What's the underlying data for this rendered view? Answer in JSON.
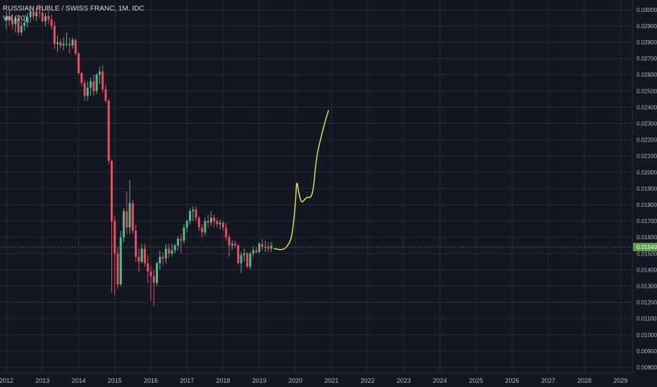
{
  "legend": {
    "title": "RUSSIAN RUBLE / SWISS FRANC, 1M, IDC",
    "indicator": "Vol (20)"
  },
  "current_price_label": "0.01540",
  "colors": {
    "background": "#131722",
    "grid": "#262b3a",
    "up": "#53b987",
    "down": "#eb4d5c",
    "drawing": "#e6f04a",
    "price_line": "#5b9c45",
    "axis_text": "#b2b5be"
  },
  "chart_data": {
    "type": "candlestick",
    "title": "RUSSIAN RUBLE / SWISS FRANC, 1M, IDC",
    "ylim": [
      0.0077,
      0.0303
    ],
    "y_ticks": [
      "0.03000",
      "0.02900",
      "0.02800",
      "0.02700",
      "0.02600",
      "0.02500",
      "0.02400",
      "0.02300",
      "0.02200",
      "0.02100",
      "0.02000",
      "0.01900",
      "0.01800",
      "0.01700",
      "0.01600",
      "0.01500",
      "0.01400",
      "0.01300",
      "0.01200",
      "0.01100",
      "0.01000",
      "0.00900",
      "0.00800"
    ],
    "x_ticks": [
      "2012",
      "2013",
      "2014",
      "2015",
      "2016",
      "2017",
      "2018",
      "2019",
      "2020",
      "2021",
      "2022",
      "2023",
      "2024",
      "2025",
      "2026",
      "2027",
      "2028",
      "2029"
    ],
    "grid": true,
    "current_price": 0.0154,
    "candles": [
      {
        "t": "2012-01",
        "o": 0.02935,
        "h": 0.0299,
        "l": 0.0288,
        "c": 0.0296
      },
      {
        "t": "2012-02",
        "o": 0.0296,
        "h": 0.03,
        "l": 0.029,
        "c": 0.0294
      },
      {
        "t": "2012-03",
        "o": 0.0294,
        "h": 0.02975,
        "l": 0.0288,
        "c": 0.0291
      },
      {
        "t": "2012-04",
        "o": 0.0291,
        "h": 0.0296,
        "l": 0.0286,
        "c": 0.0295
      },
      {
        "t": "2012-05",
        "o": 0.0295,
        "h": 0.0297,
        "l": 0.0284,
        "c": 0.0286
      },
      {
        "t": "2012-06",
        "o": 0.0286,
        "h": 0.0293,
        "l": 0.0284,
        "c": 0.029
      },
      {
        "t": "2012-07",
        "o": 0.029,
        "h": 0.0294,
        "l": 0.0287,
        "c": 0.0292
      },
      {
        "t": "2012-08",
        "o": 0.0292,
        "h": 0.0298,
        "l": 0.0289,
        "c": 0.02955
      },
      {
        "t": "2012-09",
        "o": 0.02955,
        "h": 0.0301,
        "l": 0.0292,
        "c": 0.0299
      },
      {
        "t": "2012-10",
        "o": 0.0299,
        "h": 0.0302,
        "l": 0.0294,
        "c": 0.0296
      },
      {
        "t": "2012-11",
        "o": 0.0296,
        "h": 0.0301,
        "l": 0.0293,
        "c": 0.02985
      },
      {
        "t": "2012-12",
        "o": 0.02985,
        "h": 0.0303,
        "l": 0.0295,
        "c": 0.0298
      },
      {
        "t": "2013-01",
        "o": 0.0298,
        "h": 0.0302,
        "l": 0.0292,
        "c": 0.0293
      },
      {
        "t": "2013-02",
        "o": 0.0293,
        "h": 0.0298,
        "l": 0.029,
        "c": 0.0296
      },
      {
        "t": "2013-03",
        "o": 0.0296,
        "h": 0.0299,
        "l": 0.0291,
        "c": 0.0294
      },
      {
        "t": "2013-04",
        "o": 0.0294,
        "h": 0.0297,
        "l": 0.0288,
        "c": 0.029
      },
      {
        "t": "2013-05",
        "o": 0.029,
        "h": 0.0293,
        "l": 0.0276,
        "c": 0.0279
      },
      {
        "t": "2013-06",
        "o": 0.0279,
        "h": 0.0284,
        "l": 0.0274,
        "c": 0.028
      },
      {
        "t": "2013-07",
        "o": 0.028,
        "h": 0.0282,
        "l": 0.0276,
        "c": 0.0278
      },
      {
        "t": "2013-08",
        "o": 0.0278,
        "h": 0.0283,
        "l": 0.0275,
        "c": 0.0279
      },
      {
        "t": "2013-09",
        "o": 0.0279,
        "h": 0.0286,
        "l": 0.0277,
        "c": 0.0279
      },
      {
        "t": "2013-10",
        "o": 0.0279,
        "h": 0.0283,
        "l": 0.0273,
        "c": 0.0278
      },
      {
        "t": "2013-11",
        "o": 0.0278,
        "h": 0.0283,
        "l": 0.0276,
        "c": 0.02815
      },
      {
        "t": "2013-12",
        "o": 0.02815,
        "h": 0.0282,
        "l": 0.0272,
        "c": 0.0273
      },
      {
        "t": "2014-01",
        "o": 0.0273,
        "h": 0.0274,
        "l": 0.026,
        "c": 0.0261
      },
      {
        "t": "2014-02",
        "o": 0.0261,
        "h": 0.0262,
        "l": 0.0253,
        "c": 0.0255
      },
      {
        "t": "2014-03",
        "o": 0.0255,
        "h": 0.0257,
        "l": 0.0244,
        "c": 0.0247
      },
      {
        "t": "2014-04",
        "o": 0.0247,
        "h": 0.0256,
        "l": 0.0244,
        "c": 0.0252
      },
      {
        "t": "2014-05",
        "o": 0.0252,
        "h": 0.0258,
        "l": 0.0247,
        "c": 0.0256
      },
      {
        "t": "2014-06",
        "o": 0.0256,
        "h": 0.026,
        "l": 0.0247,
        "c": 0.025
      },
      {
        "t": "2014-07",
        "o": 0.025,
        "h": 0.0261,
        "l": 0.0248,
        "c": 0.026
      },
      {
        "t": "2014-08",
        "o": 0.026,
        "h": 0.0265,
        "l": 0.0254,
        "c": 0.0262
      },
      {
        "t": "2014-09",
        "o": 0.0262,
        "h": 0.0266,
        "l": 0.0249,
        "c": 0.0251
      },
      {
        "t": "2014-10",
        "o": 0.0251,
        "h": 0.0254,
        "l": 0.0243,
        "c": 0.0244
      },
      {
        "t": "2014-11",
        "o": 0.0244,
        "h": 0.0245,
        "l": 0.0205,
        "c": 0.0207
      },
      {
        "t": "2014-12",
        "o": 0.0207,
        "h": 0.0208,
        "l": 0.0126,
        "c": 0.017
      },
      {
        "t": "2015-01",
        "o": 0.017,
        "h": 0.0173,
        "l": 0.0124,
        "c": 0.015
      },
      {
        "t": "2015-02",
        "o": 0.015,
        "h": 0.0154,
        "l": 0.0128,
        "c": 0.0131
      },
      {
        "t": "2015-03",
        "o": 0.0131,
        "h": 0.0164,
        "l": 0.013,
        "c": 0.016
      },
      {
        "t": "2015-04",
        "o": 0.016,
        "h": 0.0178,
        "l": 0.0157,
        "c": 0.0176
      },
      {
        "t": "2015-05",
        "o": 0.0176,
        "h": 0.0188,
        "l": 0.0162,
        "c": 0.0166
      },
      {
        "t": "2015-06",
        "o": 0.0166,
        "h": 0.0195,
        "l": 0.0162,
        "c": 0.0181
      },
      {
        "t": "2015-07",
        "o": 0.0181,
        "h": 0.0183,
        "l": 0.0162,
        "c": 0.0164
      },
      {
        "t": "2015-08",
        "o": 0.0164,
        "h": 0.0168,
        "l": 0.0145,
        "c": 0.0148
      },
      {
        "t": "2015-09",
        "o": 0.0148,
        "h": 0.0153,
        "l": 0.0139,
        "c": 0.0145
      },
      {
        "t": "2015-10",
        "o": 0.0145,
        "h": 0.0156,
        "l": 0.0144,
        "c": 0.0153
      },
      {
        "t": "2015-11",
        "o": 0.0153,
        "h": 0.0156,
        "l": 0.0142,
        "c": 0.0144
      },
      {
        "t": "2015-12",
        "o": 0.0144,
        "h": 0.0149,
        "l": 0.0132,
        "c": 0.0139
      },
      {
        "t": "2016-01",
        "o": 0.0139,
        "h": 0.0143,
        "l": 0.0121,
        "c": 0.0136
      },
      {
        "t": "2016-02",
        "o": 0.0136,
        "h": 0.014,
        "l": 0.0118,
        "c": 0.0132
      },
      {
        "t": "2016-03",
        "o": 0.0132,
        "h": 0.0145,
        "l": 0.013,
        "c": 0.0144
      },
      {
        "t": "2016-04",
        "o": 0.0144,
        "h": 0.0152,
        "l": 0.014,
        "c": 0.0148
      },
      {
        "t": "2016-05",
        "o": 0.0148,
        "h": 0.0151,
        "l": 0.0143,
        "c": 0.0147
      },
      {
        "t": "2016-06",
        "o": 0.0147,
        "h": 0.0156,
        "l": 0.0144,
        "c": 0.0153
      },
      {
        "t": "2016-07",
        "o": 0.0153,
        "h": 0.0156,
        "l": 0.0147,
        "c": 0.015
      },
      {
        "t": "2016-08",
        "o": 0.015,
        "h": 0.0156,
        "l": 0.0148,
        "c": 0.0152
      },
      {
        "t": "2016-09",
        "o": 0.0152,
        "h": 0.0156,
        "l": 0.015,
        "c": 0.0155
      },
      {
        "t": "2016-10",
        "o": 0.0155,
        "h": 0.0161,
        "l": 0.0152,
        "c": 0.0159
      },
      {
        "t": "2016-11",
        "o": 0.0159,
        "h": 0.0162,
        "l": 0.015,
        "c": 0.0158
      },
      {
        "t": "2016-12",
        "o": 0.0158,
        "h": 0.0168,
        "l": 0.0156,
        "c": 0.0166
      },
      {
        "t": "2017-01",
        "o": 0.0166,
        "h": 0.0171,
        "l": 0.0163,
        "c": 0.017
      },
      {
        "t": "2017-02",
        "o": 0.017,
        "h": 0.0178,
        "l": 0.0168,
        "c": 0.0176
      },
      {
        "t": "2017-03",
        "o": 0.0176,
        "h": 0.0179,
        "l": 0.017,
        "c": 0.0177
      },
      {
        "t": "2017-04",
        "o": 0.0177,
        "h": 0.0179,
        "l": 0.017,
        "c": 0.0172
      },
      {
        "t": "2017-05",
        "o": 0.0172,
        "h": 0.0173,
        "l": 0.0164,
        "c": 0.0166
      },
      {
        "t": "2017-06",
        "o": 0.0166,
        "h": 0.0168,
        "l": 0.016,
        "c": 0.0163
      },
      {
        "t": "2017-07",
        "o": 0.0163,
        "h": 0.0172,
        "l": 0.0161,
        "c": 0.017
      },
      {
        "t": "2017-08",
        "o": 0.017,
        "h": 0.0174,
        "l": 0.0166,
        "c": 0.0169
      },
      {
        "t": "2017-09",
        "o": 0.0169,
        "h": 0.0176,
        "l": 0.0167,
        "c": 0.0172
      },
      {
        "t": "2017-10",
        "o": 0.0172,
        "h": 0.0174,
        "l": 0.0166,
        "c": 0.017
      },
      {
        "t": "2017-11",
        "o": 0.017,
        "h": 0.0172,
        "l": 0.0166,
        "c": 0.0168
      },
      {
        "t": "2017-12",
        "o": 0.0168,
        "h": 0.0171,
        "l": 0.0165,
        "c": 0.0169
      },
      {
        "t": "2018-01",
        "o": 0.0169,
        "h": 0.017,
        "l": 0.0164,
        "c": 0.0166
      },
      {
        "t": "2018-02",
        "o": 0.0166,
        "h": 0.0169,
        "l": 0.0158,
        "c": 0.016
      },
      {
        "t": "2018-03",
        "o": 0.016,
        "h": 0.0162,
        "l": 0.0148,
        "c": 0.0155
      },
      {
        "t": "2018-04",
        "o": 0.0155,
        "h": 0.0158,
        "l": 0.0152,
        "c": 0.0156
      },
      {
        "t": "2018-05",
        "o": 0.0156,
        "h": 0.0158,
        "l": 0.0153,
        "c": 0.0155
      },
      {
        "t": "2018-06",
        "o": 0.0155,
        "h": 0.0156,
        "l": 0.0143,
        "c": 0.0144
      },
      {
        "t": "2018-07",
        "o": 0.0144,
        "h": 0.0151,
        "l": 0.0138,
        "c": 0.0149
      },
      {
        "t": "2018-08",
        "o": 0.0149,
        "h": 0.0153,
        "l": 0.0145,
        "c": 0.015
      },
      {
        "t": "2018-09",
        "o": 0.015,
        "h": 0.0151,
        "l": 0.0141,
        "c": 0.0142
      },
      {
        "t": "2018-10",
        "o": 0.0142,
        "h": 0.0151,
        "l": 0.014,
        "c": 0.015
      },
      {
        "t": "2018-11",
        "o": 0.015,
        "h": 0.0154,
        "l": 0.0148,
        "c": 0.0152
      },
      {
        "t": "2018-12",
        "o": 0.0152,
        "h": 0.0154,
        "l": 0.015,
        "c": 0.0151
      },
      {
        "t": "2019-01",
        "o": 0.0151,
        "h": 0.0157,
        "l": 0.015,
        "c": 0.0156
      },
      {
        "t": "2019-02",
        "o": 0.0156,
        "h": 0.0159,
        "l": 0.0152,
        "c": 0.0154
      },
      {
        "t": "2019-03",
        "o": 0.0154,
        "h": 0.0158,
        "l": 0.0151,
        "c": 0.0154
      },
      {
        "t": "2019-04",
        "o": 0.0154,
        "h": 0.0157,
        "l": 0.0151,
        "c": 0.0153
      },
      {
        "t": "2019-05",
        "o": 0.0153,
        "h": 0.0157,
        "l": 0.0151,
        "c": 0.0155
      }
    ],
    "projection": [
      {
        "t": "2019-06",
        "y": 0.0153
      },
      {
        "t": "2019-09",
        "y": 0.0152
      },
      {
        "t": "2019-11",
        "y": 0.0156
      },
      {
        "t": "2019-12",
        "y": 0.0162
      },
      {
        "t": "2020-01",
        "y": 0.018
      },
      {
        "t": "2020-01",
        "y": 0.0196
      },
      {
        "t": "2020-02",
        "y": 0.0188
      },
      {
        "t": "2020-03",
        "y": 0.0181
      },
      {
        "t": "2020-04",
        "y": 0.0183
      },
      {
        "t": "2020-05",
        "y": 0.0185
      },
      {
        "t": "2020-06",
        "y": 0.0184
      },
      {
        "t": "2020-07",
        "y": 0.0189
      },
      {
        "t": "2020-08",
        "y": 0.021
      },
      {
        "t": "2020-10",
        "y": 0.0225
      },
      {
        "t": "2020-11",
        "y": 0.0232
      },
      {
        "t": "2020-12",
        "y": 0.0238
      }
    ]
  }
}
